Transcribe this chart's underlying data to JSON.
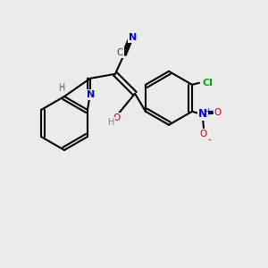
{
  "background_color": "#ebebeb",
  "figsize": [
    3.0,
    3.0
  ],
  "dpi": 100,
  "bond_color": "#000000",
  "bond_lw": 1.5,
  "atom_colors": {
    "N": "#0000cc",
    "O": "#cc0000",
    "Cl": "#00aa00",
    "C": "#404040",
    "H": "#808080"
  },
  "font_size": 7.5
}
